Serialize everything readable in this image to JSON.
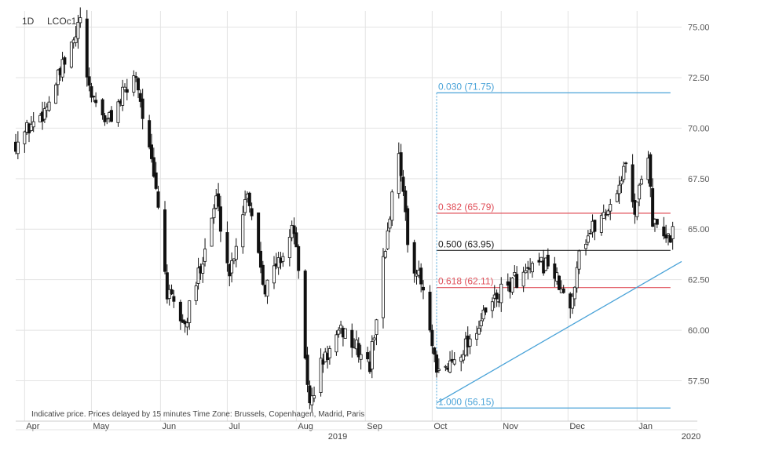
{
  "header": {
    "interval": "1D",
    "symbol": "LCOc1"
  },
  "footer_note": "Indicative price. Prices delayed by 15 minutes   Time Zone: Brussels, Copenhagen, Madrid, Paris",
  "year_labels": [
    "2019",
    "2020"
  ],
  "colors": {
    "fib_blue": "#4aa3d8",
    "fib_red": "#e0505a",
    "fib_black": "#222222",
    "trendline": "#4aa3d8",
    "candle": "#111111",
    "grid": "#e3e3e3"
  },
  "chart_data": {
    "type": "candlestick",
    "ylim": [
      55.5,
      75.8
    ],
    "y_ticks": [
      "75.00",
      "72.50",
      "70.00",
      "67.50",
      "65.00",
      "62.50",
      "60.00",
      "57.50"
    ],
    "x_start": "2019-03-28",
    "x_end": "2020-01-21",
    "months": [
      {
        "label": "Apr",
        "date": "2019-04-01"
      },
      {
        "label": "May",
        "date": "2019-05-01"
      },
      {
        "label": "Jun",
        "date": "2019-06-01"
      },
      {
        "label": "Jul",
        "date": "2019-07-01"
      },
      {
        "label": "Aug",
        "date": "2019-08-01"
      },
      {
        "label": "Sep",
        "date": "2019-09-01"
      },
      {
        "label": "Oct",
        "date": "2019-10-01"
      },
      {
        "label": "Nov",
        "date": "2019-11-01"
      },
      {
        "label": "Dec",
        "date": "2019-12-01"
      },
      {
        "label": "Jan",
        "date": "2020-01-01"
      }
    ],
    "fib_levels": [
      {
        "label": "0.030 (71.75)",
        "value": 71.75,
        "color": "blue"
      },
      {
        "label": "0.382 (65.79)",
        "value": 65.79,
        "color": "red"
      },
      {
        "label": "0.500 (63.95)",
        "value": 63.95,
        "color": "black"
      },
      {
        "label": "0.618 (62.11)",
        "value": 62.11,
        "color": "red"
      },
      {
        "label": "1.000 (56.15)",
        "value": 56.15,
        "color": "blue"
      }
    ],
    "fib_start": "2019-10-03",
    "fib_end": "2020-01-16",
    "trendline": {
      "from": {
        "date": "2019-10-03",
        "value": 56.4
      },
      "to": {
        "date": "2020-01-21",
        "value": 63.4
      }
    },
    "close_path": [
      [
        "2019-03-28",
        69.3
      ],
      [
        "2019-04-10",
        70.9
      ],
      [
        "2019-04-24",
        74.5
      ],
      [
        "2019-04-26",
        75.5
      ],
      [
        "2019-04-29",
        72.1
      ],
      [
        "2019-05-08",
        70.3
      ],
      [
        "2019-05-14",
        71.4
      ],
      [
        "2019-05-21",
        72.7
      ],
      [
        "2019-05-31",
        66.2
      ],
      [
        "2019-06-04",
        61.8
      ],
      [
        "2019-06-12",
        60.2
      ],
      [
        "2019-06-17",
        62.3
      ],
      [
        "2019-06-26",
        66.5
      ],
      [
        "2019-07-02",
        62.8
      ],
      [
        "2019-07-10",
        67.0
      ],
      [
        "2019-07-18",
        62.1
      ],
      [
        "2019-07-25",
        63.6
      ],
      [
        "2019-07-31",
        65.1
      ],
      [
        "2019-08-07",
        56.2
      ],
      [
        "2019-08-12",
        58.3
      ],
      [
        "2019-08-22",
        60.0
      ],
      [
        "2019-09-03",
        58.2
      ],
      [
        "2019-09-06",
        60.8
      ],
      [
        "2019-09-16",
        69.1
      ],
      [
        "2019-09-20",
        64.3
      ],
      [
        "2019-09-27",
        61.9
      ],
      [
        "2019-10-03",
        57.7
      ],
      [
        "2019-10-08",
        58.2
      ],
      [
        "2019-10-18",
        59.6
      ],
      [
        "2019-10-29",
        61.5
      ],
      [
        "2019-11-07",
        62.5
      ],
      [
        "2019-11-15",
        62.9
      ],
      [
        "2019-11-22",
        63.4
      ],
      [
        "2019-12-02",
        60.9
      ],
      [
        "2019-12-06",
        64.1
      ],
      [
        "2019-12-13",
        65.2
      ],
      [
        "2019-12-20",
        66.2
      ],
      [
        "2019-12-27",
        68.1
      ],
      [
        "2019-12-31",
        66.0
      ],
      [
        "2020-01-06",
        68.9
      ],
      [
        "2020-01-08",
        65.4
      ],
      [
        "2020-01-10",
        65.0
      ],
      [
        "2020-01-14",
        64.4
      ],
      [
        "2020-01-16",
        64.7
      ],
      [
        "2020-01-17",
        64.9
      ]
    ]
  }
}
